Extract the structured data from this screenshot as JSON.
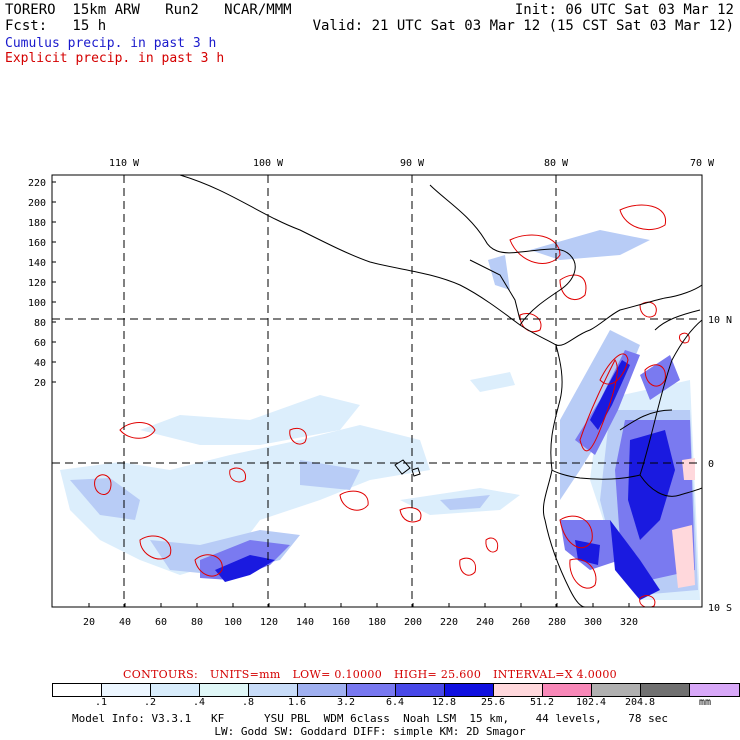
{
  "header": {
    "line1_left": "TORERO  15km ARW   Run2   NCAR/MMM",
    "line1_right": "Init: 06 UTC Sat 03 Mar 12",
    "line2_left": "Fcst:   15 h",
    "line2_right": "Valid: 21 UTC Sat 03 Mar 12 (15 CST Sat 03 Mar 12)",
    "legend_cumulus": "Cumulus precip. in past 3 h",
    "legend_explicit": "Explicit precip. in past 3 h"
  },
  "map": {
    "lon_labels": [
      "110 W",
      "100 W",
      "90 W",
      "80 W",
      "70 W"
    ],
    "lat_labels": [
      "10 N",
      "0",
      "10 S"
    ],
    "y_ticks": [
      "220",
      "200",
      "180",
      "160",
      "140",
      "120",
      "100",
      "80",
      "60",
      "40",
      "20"
    ],
    "x_ticks": [
      "20",
      "40",
      "60",
      "80",
      "100",
      "120",
      "140",
      "160",
      "180",
      "200",
      "220",
      "240",
      "260",
      "280",
      "300",
      "320"
    ]
  },
  "contours": {
    "label": "CONTOURS:",
    "units": "UNITS=mm",
    "low": "LOW= 0.10000",
    "high": "HIGH=  25.600",
    "interval": "INTERVAL=X  4.0000"
  },
  "colorbar": {
    "colors": [
      "#ffffff",
      "#ecf6ff",
      "#d8ecfb",
      "#e0f7f7",
      "#c8dcf8",
      "#a0b0f0",
      "#7878f0",
      "#4848e8",
      "#1010e0",
      "#ffd8dc",
      "#f888b8",
      "#b0b0b0",
      "#707070",
      "#d8a8f8"
    ],
    "labels": [
      ".1",
      ".2",
      ".4",
      ".8",
      "1.6",
      "3.2",
      "6.4",
      "12.8",
      "25.6",
      "51.2",
      "102.4",
      "204.8"
    ],
    "unit": "mm"
  },
  "model_info": {
    "line1": "Model Info: V3.3.1   KF      YSU PBL  WDM 6class  Noah LSM  15 km,    44 levels,    78 sec",
    "line2": "LW: Godd SW: Goddard DIFF: simple KM: 2D Smagor"
  }
}
